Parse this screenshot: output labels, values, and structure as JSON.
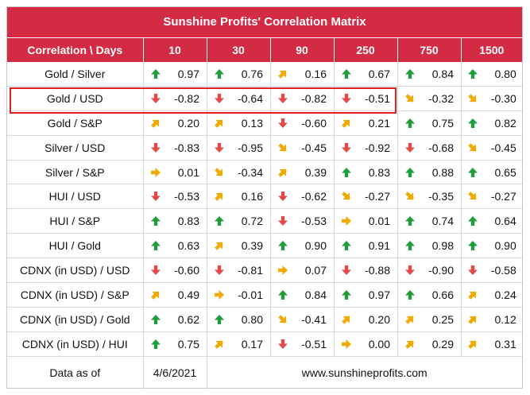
{
  "title": "Sunshine Profits' Correlation Matrix",
  "header": {
    "corner": "Correlation \\ Days",
    "periods": [
      "10",
      "30",
      "90",
      "250",
      "750",
      "1500"
    ]
  },
  "colors": {
    "header_bg": "#d42b45",
    "up": "#1e9e3a",
    "down": "#e24a4a",
    "sideways": "#f2a900"
  },
  "rows": [
    {
      "pair": "Gold / Silver",
      "values": [
        "0.97",
        "0.76",
        "0.16",
        "0.67",
        "0.84",
        "0.80"
      ],
      "dirs": [
        "up",
        "up",
        "up-right",
        "up",
        "up",
        "up"
      ]
    },
    {
      "pair": "Gold / USD",
      "values": [
        "-0.82",
        "-0.64",
        "-0.82",
        "-0.51",
        "-0.32",
        "-0.30"
      ],
      "dirs": [
        "down",
        "down",
        "down",
        "down",
        "down-right",
        "down-right"
      ]
    },
    {
      "pair": "Gold / S&P",
      "values": [
        "0.20",
        "0.13",
        "-0.60",
        "0.21",
        "0.75",
        "0.82"
      ],
      "dirs": [
        "up-right",
        "up-right",
        "down",
        "up-right",
        "up",
        "up"
      ]
    },
    {
      "pair": "Silver / USD",
      "values": [
        "-0.83",
        "-0.95",
        "-0.45",
        "-0.92",
        "-0.68",
        "-0.45"
      ],
      "dirs": [
        "down",
        "down",
        "down-right",
        "down",
        "down",
        "down-right"
      ]
    },
    {
      "pair": "Silver / S&P",
      "values": [
        "0.01",
        "-0.34",
        "0.39",
        "0.83",
        "0.88",
        "0.65"
      ],
      "dirs": [
        "right",
        "down-right",
        "up-right",
        "up",
        "up",
        "up"
      ]
    },
    {
      "pair": "HUI / USD",
      "values": [
        "-0.53",
        "0.16",
        "-0.62",
        "-0.27",
        "-0.35",
        "-0.27"
      ],
      "dirs": [
        "down",
        "up-right",
        "down",
        "down-right",
        "down-right",
        "down-right"
      ]
    },
    {
      "pair": "HUI / S&P",
      "values": [
        "0.83",
        "0.72",
        "-0.53",
        "0.01",
        "0.74",
        "0.64"
      ],
      "dirs": [
        "up",
        "up",
        "down",
        "right",
        "up",
        "up"
      ]
    },
    {
      "pair": "HUI / Gold",
      "values": [
        "0.63",
        "0.39",
        "0.90",
        "0.91",
        "0.98",
        "0.90"
      ],
      "dirs": [
        "up",
        "up-right",
        "up",
        "up",
        "up",
        "up"
      ]
    },
    {
      "pair": "CDNX (in USD) / USD",
      "values": [
        "-0.60",
        "-0.81",
        "0.07",
        "-0.88",
        "-0.90",
        "-0.58"
      ],
      "dirs": [
        "down",
        "down",
        "right",
        "down",
        "down",
        "down"
      ]
    },
    {
      "pair": "CDNX (in USD) / S&P",
      "values": [
        "0.49",
        "-0.01",
        "0.84",
        "0.97",
        "0.66",
        "0.24"
      ],
      "dirs": [
        "up-right",
        "right",
        "up",
        "up",
        "up",
        "up-right"
      ]
    },
    {
      "pair": "CDNX (in USD) / Gold",
      "values": [
        "0.62",
        "0.80",
        "-0.41",
        "0.20",
        "0.25",
        "0.12"
      ],
      "dirs": [
        "up",
        "up",
        "down-right",
        "up-right",
        "up-right",
        "up-right"
      ]
    },
    {
      "pair": "CDNX (in USD) / HUI",
      "values": [
        "0.75",
        "0.17",
        "-0.51",
        "0.00",
        "0.29",
        "0.31"
      ],
      "dirs": [
        "up",
        "up-right",
        "down",
        "right",
        "up-right",
        "up-right"
      ]
    }
  ],
  "footer": {
    "label": "Data as of",
    "date": "4/6/2021",
    "site": "www.sunshineprofits.com"
  }
}
